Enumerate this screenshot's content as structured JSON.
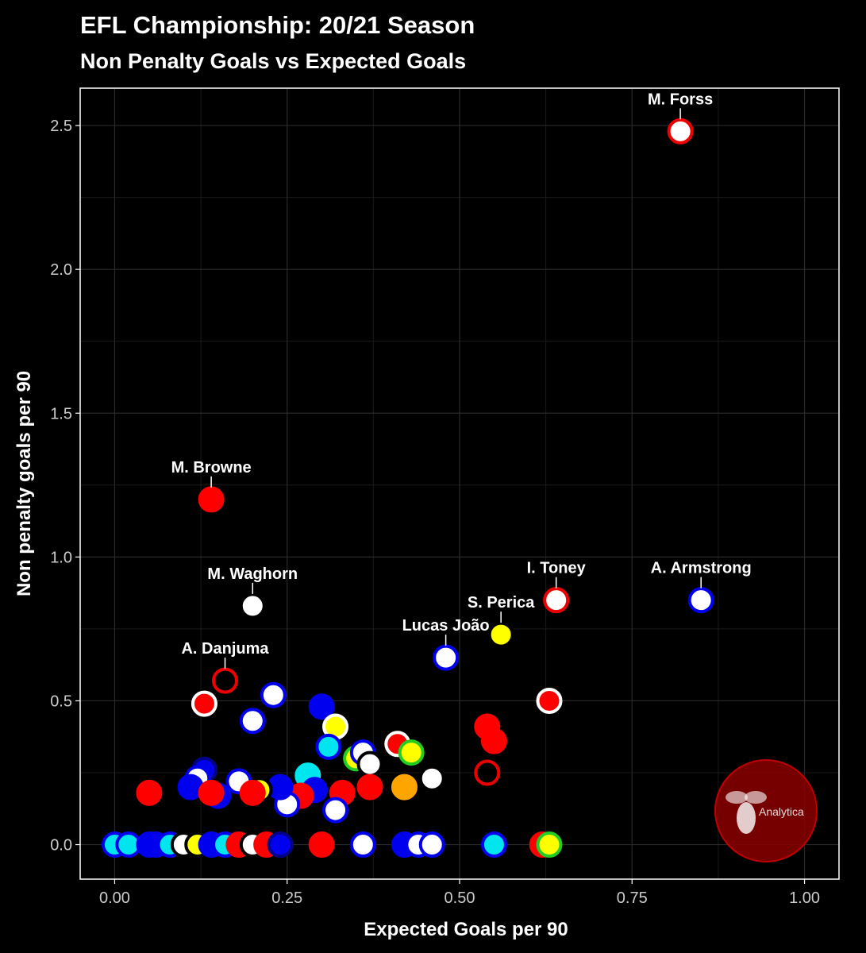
{
  "chart_data": {
    "type": "scatter",
    "title": "EFL Championship: 20/21 Season",
    "subtitle": "Non Penalty Goals vs Expected Goals",
    "xlabel": "Expected Goals per 90",
    "ylabel": "Non penalty goals per 90",
    "xlim": [
      -0.05,
      1.05
    ],
    "ylim": [
      -0.12,
      2.63
    ],
    "x_ticks": [
      "0.00",
      "0.25",
      "0.50",
      "0.75",
      "1.00"
    ],
    "x_tick_values": [
      0,
      0.25,
      0.5,
      0.75,
      1.0
    ],
    "y_ticks": [
      "0.0",
      "0.5",
      "1.0",
      "1.5",
      "2.0",
      "2.5"
    ],
    "y_tick_values": [
      0,
      0.5,
      1.0,
      1.5,
      2.0,
      2.5
    ],
    "grid": true,
    "legend": "none",
    "watermark": "Analytica",
    "points": [
      {
        "x": 0.82,
        "y": 2.48,
        "fill": "#ffffff",
        "ring": "#ee0000",
        "label": "M. Forss"
      },
      {
        "x": 0.14,
        "y": 1.2,
        "fill": "#ff0000",
        "ring": "#ff0000",
        "label": "M. Browne"
      },
      {
        "x": 0.2,
        "y": 0.83,
        "fill": "#ffffff",
        "ring": "#000000",
        "label": "M. Waghorn"
      },
      {
        "x": 0.16,
        "y": 0.57,
        "fill": "#000000",
        "ring": "#ee0000",
        "label": "A. Danjuma"
      },
      {
        "x": 0.64,
        "y": 0.85,
        "fill": "#ffffff",
        "ring": "#ee0000",
        "label": "I. Toney"
      },
      {
        "x": 0.85,
        "y": 0.85,
        "fill": "#ffffff",
        "ring": "#0000ee",
        "label": "A. Armstrong"
      },
      {
        "x": 0.56,
        "y": 0.73,
        "fill": "#ffff00",
        "ring": "#000000",
        "label": "S. Perica"
      },
      {
        "x": 0.48,
        "y": 0.65,
        "fill": "#ffffff",
        "ring": "#0000ee",
        "label": "Lucas João"
      },
      {
        "x": 0.13,
        "y": 0.49,
        "fill": "#ff0000",
        "ring": "#ffffff"
      },
      {
        "x": 0.23,
        "y": 0.52,
        "fill": "#ffffff",
        "ring": "#0000ee"
      },
      {
        "x": 0.2,
        "y": 0.43,
        "fill": "#ffffff",
        "ring": "#0000ee"
      },
      {
        "x": 0.3,
        "y": 0.48,
        "fill": "#0000ee",
        "ring": "#0000ee"
      },
      {
        "x": 0.32,
        "y": 0.41,
        "fill": "#ffff00",
        "ring": "#ffffff"
      },
      {
        "x": 0.31,
        "y": 0.34,
        "fill": "#00e5ee",
        "ring": "#0000ee"
      },
      {
        "x": 0.63,
        "y": 0.5,
        "fill": "#ff0000",
        "ring": "#ffffff"
      },
      {
        "x": 0.54,
        "y": 0.41,
        "fill": "#ff0000",
        "ring": "#ff0000"
      },
      {
        "x": 0.55,
        "y": 0.36,
        "fill": "#ff0000",
        "ring": "#ff0000"
      },
      {
        "x": 0.54,
        "y": 0.25,
        "fill": "#000000",
        "ring": "#ee0000"
      },
      {
        "x": 0.41,
        "y": 0.35,
        "fill": "#ff0000",
        "ring": "#ffffff"
      },
      {
        "x": 0.43,
        "y": 0.32,
        "fill": "#ffff00",
        "ring": "#22cc22"
      },
      {
        "x": 0.35,
        "y": 0.3,
        "fill": "#ffff00",
        "ring": "#22cc22"
      },
      {
        "x": 0.36,
        "y": 0.32,
        "fill": "#ffffff",
        "ring": "#0000ee"
      },
      {
        "x": 0.37,
        "y": 0.28,
        "fill": "#ffffff",
        "ring": "#000000"
      },
      {
        "x": 0.28,
        "y": 0.24,
        "fill": "#00e5ee",
        "ring": "#00e5ee"
      },
      {
        "x": 0.46,
        "y": 0.23,
        "fill": "#ffffff",
        "ring": "#000000"
      },
      {
        "x": 0.42,
        "y": 0.2,
        "fill": "#ffa500",
        "ring": "#ffa500"
      },
      {
        "x": 0.37,
        "y": 0.2,
        "fill": "#ff0000",
        "ring": "#ff0000"
      },
      {
        "x": 0.33,
        "y": 0.18,
        "fill": "#ff0000",
        "ring": "#ff0000"
      },
      {
        "x": 0.29,
        "y": 0.19,
        "fill": "#0000ee",
        "ring": "#0000ee"
      },
      {
        "x": 0.27,
        "y": 0.17,
        "fill": "#ff0000",
        "ring": "#ff0000"
      },
      {
        "x": 0.25,
        "y": 0.14,
        "fill": "#ffffff",
        "ring": "#0000ee"
      },
      {
        "x": 0.24,
        "y": 0.2,
        "fill": "#0000ee",
        "ring": "#0000ee"
      },
      {
        "x": 0.32,
        "y": 0.12,
        "fill": "#ffffff",
        "ring": "#0000ee"
      },
      {
        "x": 0.21,
        "y": 0.19,
        "fill": "#ffff00",
        "ring": "#000000"
      },
      {
        "x": 0.18,
        "y": 0.22,
        "fill": "#ffffff",
        "ring": "#0000ee"
      },
      {
        "x": 0.2,
        "y": 0.18,
        "fill": "#ff0000",
        "ring": "#ff0000"
      },
      {
        "x": 0.13,
        "y": 0.26,
        "fill": "#0000ee",
        "ring": "#00008b"
      },
      {
        "x": 0.12,
        "y": 0.23,
        "fill": "#ffffff",
        "ring": "#0000ee"
      },
      {
        "x": 0.11,
        "y": 0.2,
        "fill": "#0000ee",
        "ring": "#0000ee"
      },
      {
        "x": 0.15,
        "y": 0.17,
        "fill": "#0000ee",
        "ring": "#0000ee"
      },
      {
        "x": 0.14,
        "y": 0.18,
        "fill": "#ff0000",
        "ring": "#ff0000"
      },
      {
        "x": 0.05,
        "y": 0.18,
        "fill": "#ff0000",
        "ring": "#ff0000"
      },
      {
        "x": 0.0,
        "y": 0.0,
        "fill": "#00e5ee",
        "ring": "#0000ee"
      },
      {
        "x": 0.02,
        "y": 0.0,
        "fill": "#00e5ee",
        "ring": "#0000ee"
      },
      {
        "x": 0.05,
        "y": 0.0,
        "fill": "#0000ee",
        "ring": "#0000ee"
      },
      {
        "x": 0.06,
        "y": 0.0,
        "fill": "#0000ee",
        "ring": "#0000ee"
      },
      {
        "x": 0.08,
        "y": 0.0,
        "fill": "#00e5ee",
        "ring": "#0000ee"
      },
      {
        "x": 0.1,
        "y": 0.0,
        "fill": "#ffffff",
        "ring": "#000000"
      },
      {
        "x": 0.12,
        "y": 0.0,
        "fill": "#ffff00",
        "ring": "#000000"
      },
      {
        "x": 0.14,
        "y": 0.0,
        "fill": "#0000ee",
        "ring": "#0000ee"
      },
      {
        "x": 0.16,
        "y": 0.0,
        "fill": "#00e5ee",
        "ring": "#0000ee"
      },
      {
        "x": 0.18,
        "y": 0.0,
        "fill": "#ff0000",
        "ring": "#ff0000"
      },
      {
        "x": 0.2,
        "y": 0.0,
        "fill": "#ffffff",
        "ring": "#000000"
      },
      {
        "x": 0.22,
        "y": 0.0,
        "fill": "#ff0000",
        "ring": "#ff0000"
      },
      {
        "x": 0.24,
        "y": 0.0,
        "fill": "#0000ee",
        "ring": "#00008b"
      },
      {
        "x": 0.3,
        "y": 0.0,
        "fill": "#ff0000",
        "ring": "#ff0000"
      },
      {
        "x": 0.36,
        "y": 0.0,
        "fill": "#ffffff",
        "ring": "#0000ee"
      },
      {
        "x": 0.42,
        "y": 0.0,
        "fill": "#0000ee",
        "ring": "#0000ee"
      },
      {
        "x": 0.44,
        "y": 0.0,
        "fill": "#ffffff",
        "ring": "#0000ee"
      },
      {
        "x": 0.46,
        "y": 0.0,
        "fill": "#ffffff",
        "ring": "#0000ee"
      },
      {
        "x": 0.55,
        "y": 0.0,
        "fill": "#00e5ee",
        "ring": "#0000ee"
      },
      {
        "x": 0.62,
        "y": 0.0,
        "fill": "#ff0000",
        "ring": "#ff0000"
      },
      {
        "x": 0.63,
        "y": 0.0,
        "fill": "#ffff00",
        "ring": "#22cc22"
      }
    ]
  }
}
